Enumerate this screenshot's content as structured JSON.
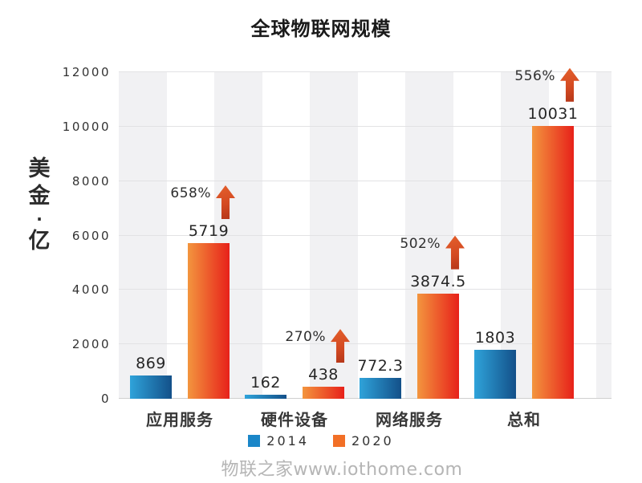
{
  "title": "全球物联网规模",
  "footer": "物联之家www.iothome.com",
  "legend": [
    {
      "label": "2014",
      "color": "#1a86c8"
    },
    {
      "label": "2020",
      "color": "#f26f26"
    }
  ],
  "colors": {
    "bar_2014_start": "#2fa3da",
    "bar_2014_end": "#135089",
    "bar_2020_start": "#f3953e",
    "bar_2020_end": "#e7211a",
    "arrow_start": "#e4602c",
    "arrow_end": "#b23518",
    "gridline": "#e2e2e4",
    "stripe": "#f1f1f3"
  },
  "chart_data": {
    "type": "bar",
    "title": "全球物联网规模",
    "ylabel": "美金·亿",
    "xlabel": "",
    "categories": [
      "应用服务",
      "硬件设备",
      "网络服务",
      "总和"
    ],
    "series": [
      {
        "name": "2014",
        "values": [
          869,
          162,
          772.3,
          1803
        ]
      },
      {
        "name": "2020",
        "values": [
          5719,
          438,
          3874.5,
          10031
        ]
      }
    ],
    "growth_labels": [
      "658%",
      "270%",
      "502%",
      "556%"
    ],
    "ylim": [
      0,
      12000
    ],
    "yticks": [
      0,
      2000,
      4000,
      6000,
      8000,
      10000,
      12000
    ],
    "grid": true,
    "legend_position": "bottom"
  }
}
